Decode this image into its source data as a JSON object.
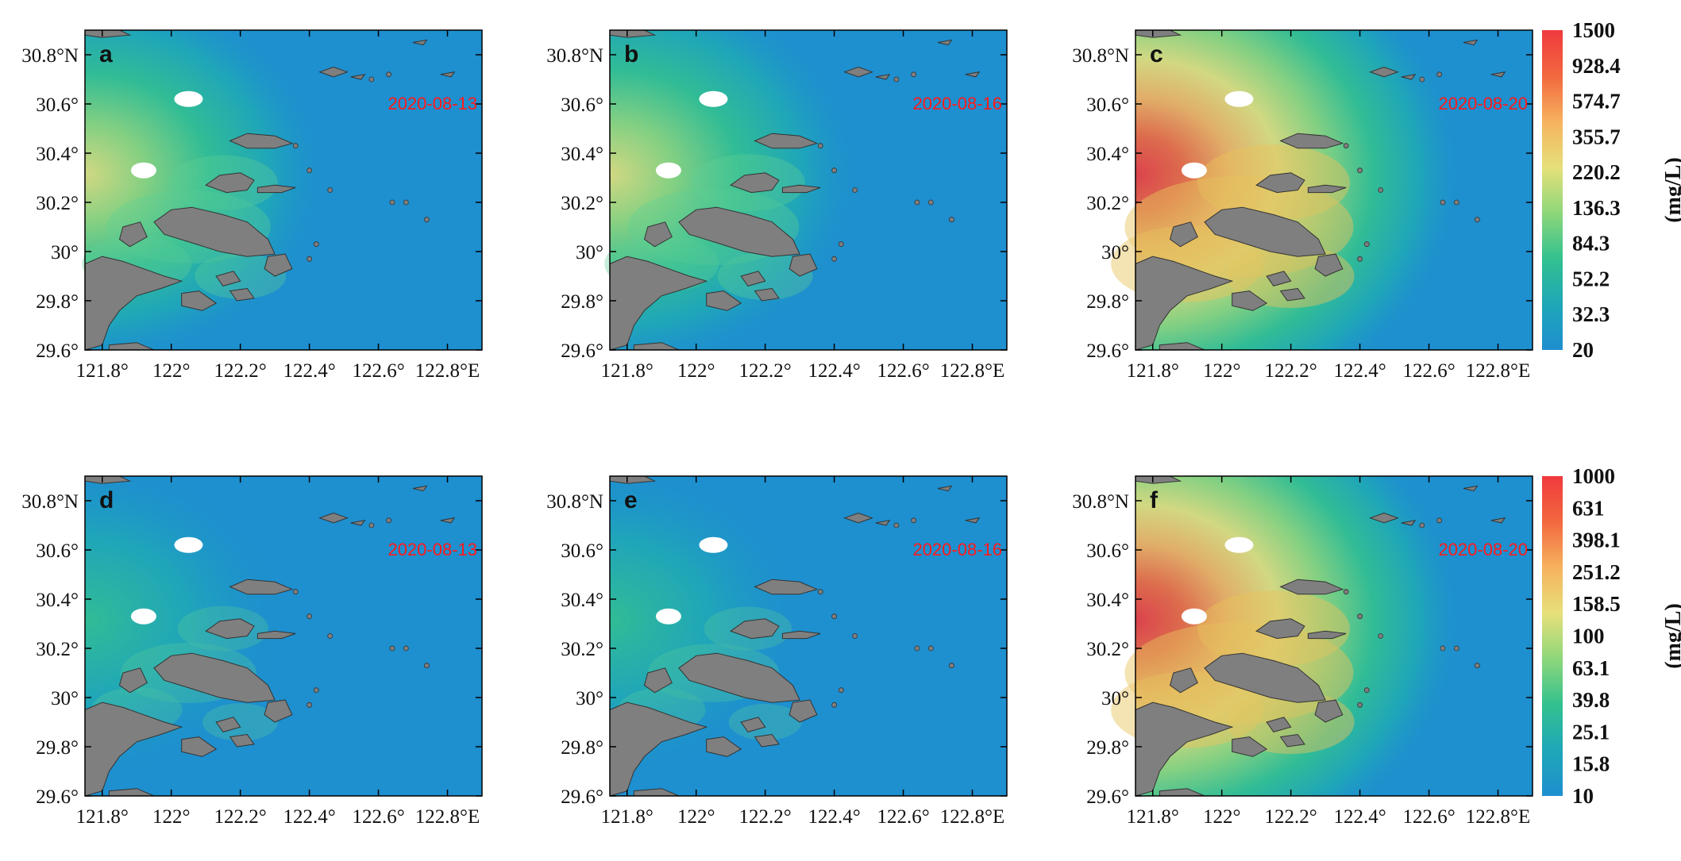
{
  "panels": [
    {
      "id": "a",
      "date": "2020-08-13",
      "scale": "top",
      "intensity": 0.55
    },
    {
      "id": "b",
      "date": "2020-08-16",
      "scale": "top",
      "intensity": 0.6
    },
    {
      "id": "c",
      "date": "2020-08-20",
      "scale": "top",
      "intensity": 1.0
    },
    {
      "id": "d",
      "date": "2020-08-13",
      "scale": "bottom",
      "intensity": 0.35
    },
    {
      "id": "e",
      "date": "2020-08-16",
      "scale": "bottom",
      "intensity": 0.32
    },
    {
      "id": "f",
      "date": "2020-08-20",
      "scale": "bottom",
      "intensity": 1.0
    }
  ],
  "axes": {
    "lon_ticks": [
      "121.8°",
      "122°",
      "122.2°",
      "122.4°",
      "122.6°",
      "122.8°E"
    ],
    "lat_ticks": [
      "30.8°N",
      "30.6°",
      "30.4°",
      "30.2°",
      "30°",
      "29.8°",
      "29.6°"
    ],
    "lon_range": [
      121.75,
      122.9
    ],
    "lat_range": [
      29.6,
      30.9
    ]
  },
  "colorbars": [
    {
      "id": "top",
      "ticks": [
        "1500",
        "928.4",
        "574.7",
        "355.7",
        "220.2",
        "136.3",
        "84.3",
        "52.2",
        "32.3",
        "20"
      ],
      "unit": "(mg/L)"
    },
    {
      "id": "bottom",
      "ticks": [
        "1000",
        "631",
        "398.1",
        "251.2",
        "158.5",
        "100",
        "63.1",
        "39.8",
        "25.1",
        "15.8",
        "10"
      ],
      "unit": "(mg/L)"
    }
  ],
  "colors": {
    "water_low": "#1e8fcf",
    "land": "#7f7f7f",
    "white_patch": "#ffffff",
    "ramp": [
      "#1e8fcf",
      "#1fa7b8",
      "#33c18f",
      "#8ed77a",
      "#e6e07a",
      "#f6b25e",
      "#f2683f",
      "#f03a3e"
    ]
  }
}
